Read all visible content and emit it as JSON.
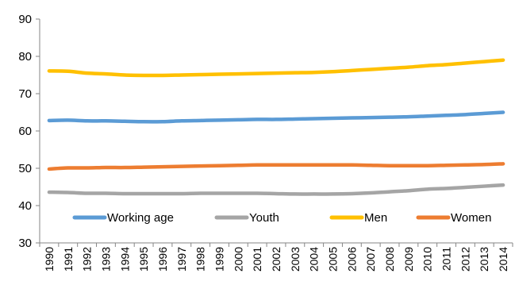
{
  "chart_data": {
    "type": "line",
    "title": "",
    "xlabel": "",
    "ylabel": "",
    "ylim": [
      30,
      90
    ],
    "yticks": [
      30,
      40,
      50,
      60,
      70,
      80,
      90
    ],
    "grid": false,
    "legend_position": "bottom-inside",
    "x": [
      "1990",
      "1991",
      "1992",
      "1993",
      "1994",
      "1995",
      "1996",
      "1997",
      "1998",
      "1999",
      "2000",
      "2001",
      "2002",
      "2003",
      "2004",
      "2005",
      "2006",
      "2007",
      "2008",
      "2009",
      "2010",
      "2011",
      "2012",
      "2013",
      "2014"
    ],
    "series": [
      {
        "name": "Working age",
        "color": "#5B9BD5",
        "values": [
          62.8,
          62.9,
          62.7,
          62.7,
          62.6,
          62.5,
          62.5,
          62.7,
          62.8,
          62.9,
          63.0,
          63.1,
          63.1,
          63.2,
          63.3,
          63.4,
          63.5,
          63.6,
          63.7,
          63.8,
          64.0,
          64.2,
          64.4,
          64.7,
          65.0
        ]
      },
      {
        "name": "Youth",
        "color": "#A5A5A5",
        "values": [
          43.6,
          43.5,
          43.3,
          43.3,
          43.2,
          43.2,
          43.2,
          43.2,
          43.3,
          43.3,
          43.3,
          43.3,
          43.2,
          43.1,
          43.1,
          43.1,
          43.2,
          43.4,
          43.7,
          44.0,
          44.4,
          44.6,
          44.9,
          45.2,
          45.5
        ]
      },
      {
        "name": "Men",
        "color": "#FFC000",
        "values": [
          76.1,
          76.0,
          75.5,
          75.3,
          75.0,
          74.9,
          74.9,
          75.0,
          75.1,
          75.2,
          75.3,
          75.4,
          75.5,
          75.6,
          75.7,
          75.9,
          76.2,
          76.5,
          76.8,
          77.1,
          77.5,
          77.8,
          78.2,
          78.6,
          79.0
        ]
      },
      {
        "name": "Women",
        "color": "#ED7D31",
        "values": [
          49.8,
          50.1,
          50.1,
          50.2,
          50.2,
          50.3,
          50.4,
          50.5,
          50.6,
          50.7,
          50.8,
          50.9,
          50.9,
          50.9,
          50.9,
          50.9,
          50.9,
          50.8,
          50.7,
          50.7,
          50.7,
          50.8,
          50.9,
          51.0,
          51.2
        ]
      }
    ]
  }
}
